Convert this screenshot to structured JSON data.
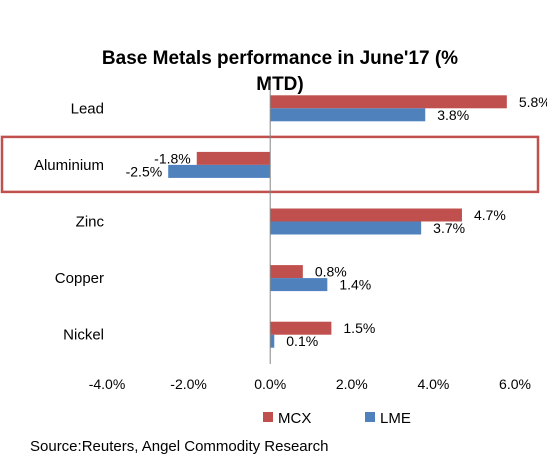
{
  "chart_data": {
    "type": "bar",
    "orientation": "horizontal",
    "title_lines": [
      "Base Metals performance in June'17 (%",
      "MTD)"
    ],
    "categories": [
      "Lead",
      "Aluminium",
      "Zinc",
      "Copper",
      "Nickel"
    ],
    "series": [
      {
        "name": "MCX",
        "color": "#c0504d",
        "values": [
          5.8,
          -1.8,
          4.7,
          0.8,
          1.5
        ],
        "labels": [
          "5.8%",
          "-1.8%",
          "4.7%",
          "0.8%",
          "1.5%"
        ]
      },
      {
        "name": "LME",
        "color": "#4f81bd",
        "values": [
          3.8,
          -2.5,
          3.7,
          1.4,
          0.1
        ],
        "labels": [
          "3.8%",
          "-2.5%",
          "3.7%",
          "1.4%",
          "0.1%"
        ]
      }
    ],
    "xlim": [
      -4.0,
      6.0
    ],
    "x_ticks": [
      -4.0,
      -2.0,
      0.0,
      2.0,
      4.0,
      6.0
    ],
    "x_tick_labels": [
      "-4.0%",
      "-2.0%",
      "0.0%",
      "2.0%",
      "4.0%",
      "6.0%"
    ],
    "grid": false,
    "legend_position": "bottom",
    "highlight": {
      "category": "Aluminium",
      "color": "#c0504d"
    }
  },
  "source": "Source:Reuters, Angel Commodity Research"
}
